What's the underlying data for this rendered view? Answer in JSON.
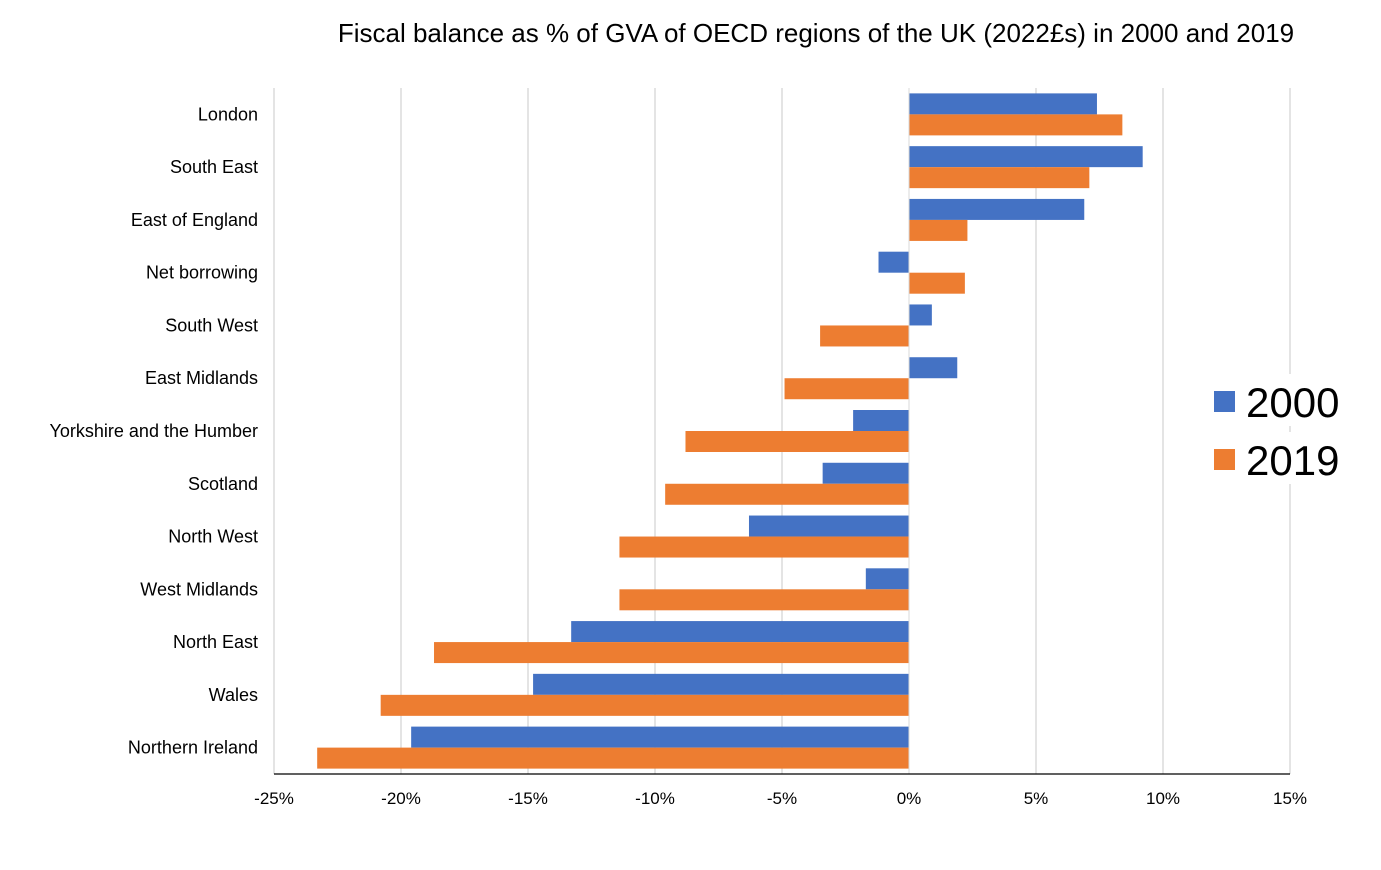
{
  "chart_data": {
    "type": "bar",
    "orientation": "horizontal",
    "title": "Fiscal balance as % of GVA of OECD regions of the UK (2022£s) in 2000 and 2019",
    "xlabel": "",
    "ylabel": "",
    "xlim": [
      -25,
      15
    ],
    "x_ticks": [
      -25,
      -20,
      -15,
      -10,
      -5,
      0,
      5,
      10,
      15
    ],
    "tick_suffix": "%",
    "grid": "vertical",
    "legend_position": "right",
    "categories": [
      "London",
      "South East",
      "East of England",
      "Net borrowing",
      "South West",
      "East Midlands",
      "Yorkshire and the Humber",
      "Scotland",
      "North West",
      "West Midlands",
      "North East",
      "Wales",
      "Northern Ireland"
    ],
    "series": [
      {
        "name": "2000",
        "color": "#4472C4",
        "values": [
          7.4,
          9.2,
          6.9,
          -1.2,
          0.9,
          1.9,
          -2.2,
          -3.4,
          -6.3,
          -1.7,
          -13.3,
          -14.8,
          -19.6
        ]
      },
      {
        "name": "2019",
        "color": "#ED7D31",
        "values": [
          8.4,
          7.1,
          2.3,
          2.2,
          -3.5,
          -4.9,
          -8.8,
          -9.6,
          -11.4,
          -11.4,
          -18.7,
          -20.8,
          -23.3
        ]
      }
    ]
  }
}
